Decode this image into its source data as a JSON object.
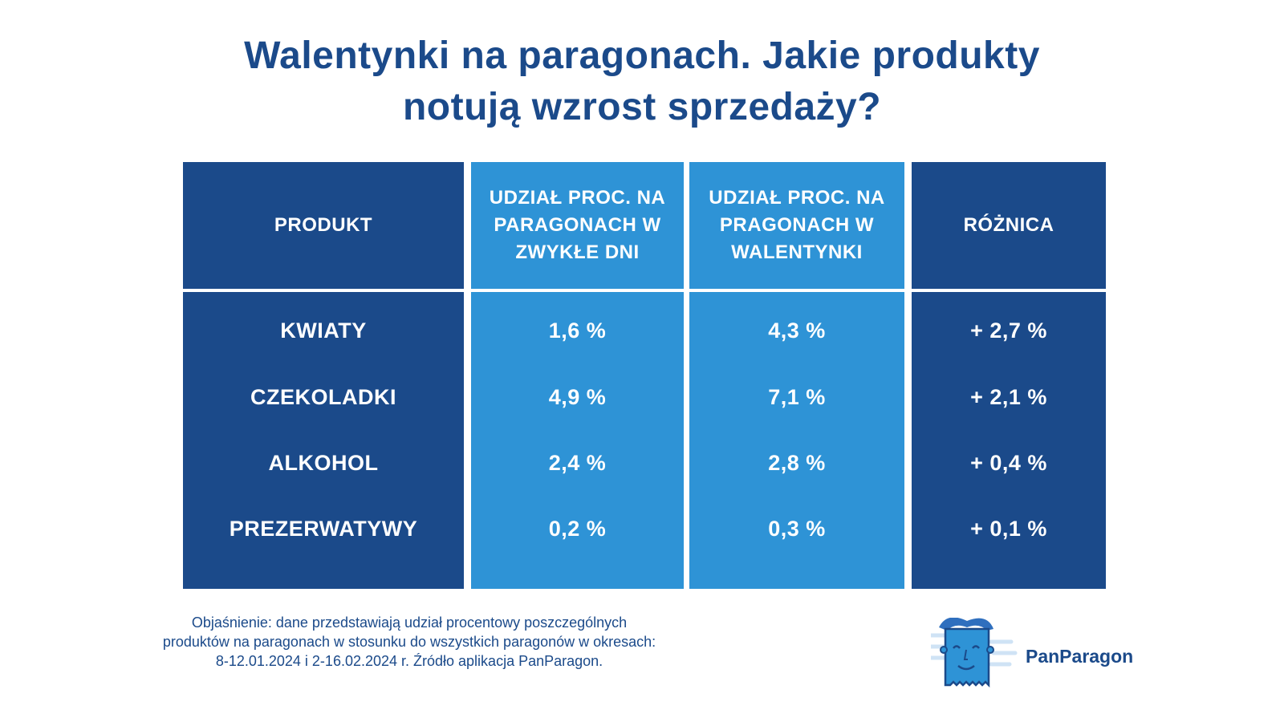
{
  "title": {
    "line1": "Walentynki na paragonach. Jakie produkty",
    "line2": "notują wzrost sprzedaży?"
  },
  "chart_data": {
    "type": "table",
    "columns": [
      "PRODUKT",
      "UDZIAŁ PROC. NA PARAGONACH W ZWYKŁE DNI",
      "UDZIAŁ PROC. NA PRAGONACH W WALENTYNKI",
      "RÓŻNICA"
    ],
    "rows": [
      [
        "KWIATY",
        "1,6 %",
        "4,3 %",
        "+ 2,7 %"
      ],
      [
        "CZEKOLADKI",
        "4,9 %",
        "7,1 %",
        "+ 2,1 %"
      ],
      [
        "ALKOHOL",
        "2,4 %",
        "2,8 %",
        "+ 0,4 %"
      ],
      [
        "PREZERWATYWY",
        "0,2 %",
        "0,3 %",
        "+ 0,1 %"
      ]
    ],
    "values": {
      "zwykle_dni": [
        1.6,
        4.9,
        2.4,
        0.2
      ],
      "walentynki": [
        4.3,
        7.1,
        2.8,
        0.3
      ],
      "roznica": [
        2.7,
        2.1,
        0.4,
        0.1
      ]
    }
  },
  "note": {
    "line1": "Objaśnienie: dane przedstawiają udział procentowy poszczególnych",
    "line2": "produktów na paragonach w stosunku do wszystkich paragonów w okresach:",
    "line3": "8-12.01.2024 i 2-16.02.2024 r. Źródło aplikacja PanParagon."
  },
  "brand": {
    "name": "PanParagon"
  },
  "colors": {
    "dark_blue": "#1b4a8a",
    "light_blue": "#2e93d6",
    "text": "#ffffff"
  }
}
